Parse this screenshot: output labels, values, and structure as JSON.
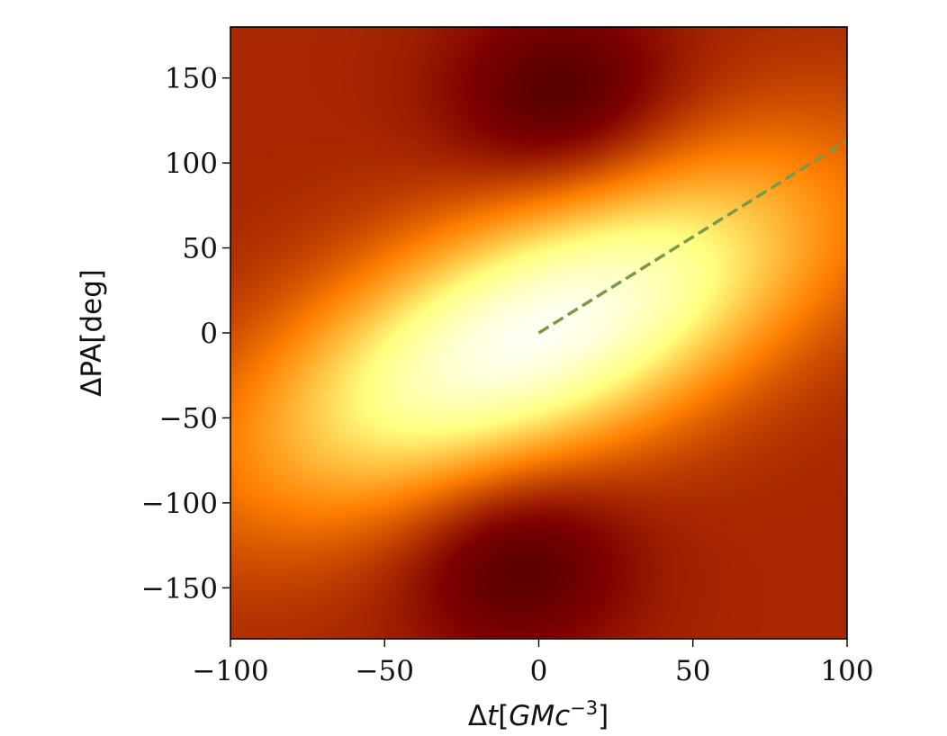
{
  "chart_data": {
    "type": "heatmap",
    "title": "",
    "xlabel": "Δt[GMc⁻³]",
    "xlabel_parts": {
      "prefix": "Δ",
      "italic": "t",
      "bracket_open": "[",
      "italic2": "GMc",
      "sup": "−3",
      "bracket_close": "]"
    },
    "ylabel": "ΔPA[deg]",
    "xlim": [
      -100,
      100
    ],
    "ylim": [
      -180,
      180
    ],
    "xticks": [
      -100,
      -50,
      0,
      50,
      100
    ],
    "xtick_labels": [
      "−100",
      "−50",
      "0",
      "50",
      "100"
    ],
    "yticks": [
      -150,
      -100,
      -50,
      0,
      50,
      100,
      150
    ],
    "ytick_labels": [
      "−150",
      "−100",
      "−50",
      "0",
      "50",
      "100",
      "150"
    ],
    "grid": false,
    "colormap": "afmhot",
    "peak": {
      "x": 0,
      "y": 0,
      "slope_deg_per_unit": 0.9
    },
    "minima": [
      {
        "x": 8,
        "y": 135
      },
      {
        "x": -8,
        "y": -130
      }
    ],
    "overlay_line": {
      "style": "dashed",
      "color": "#7a9a4a",
      "x": [
        0,
        100
      ],
      "y": [
        0,
        113
      ]
    }
  }
}
